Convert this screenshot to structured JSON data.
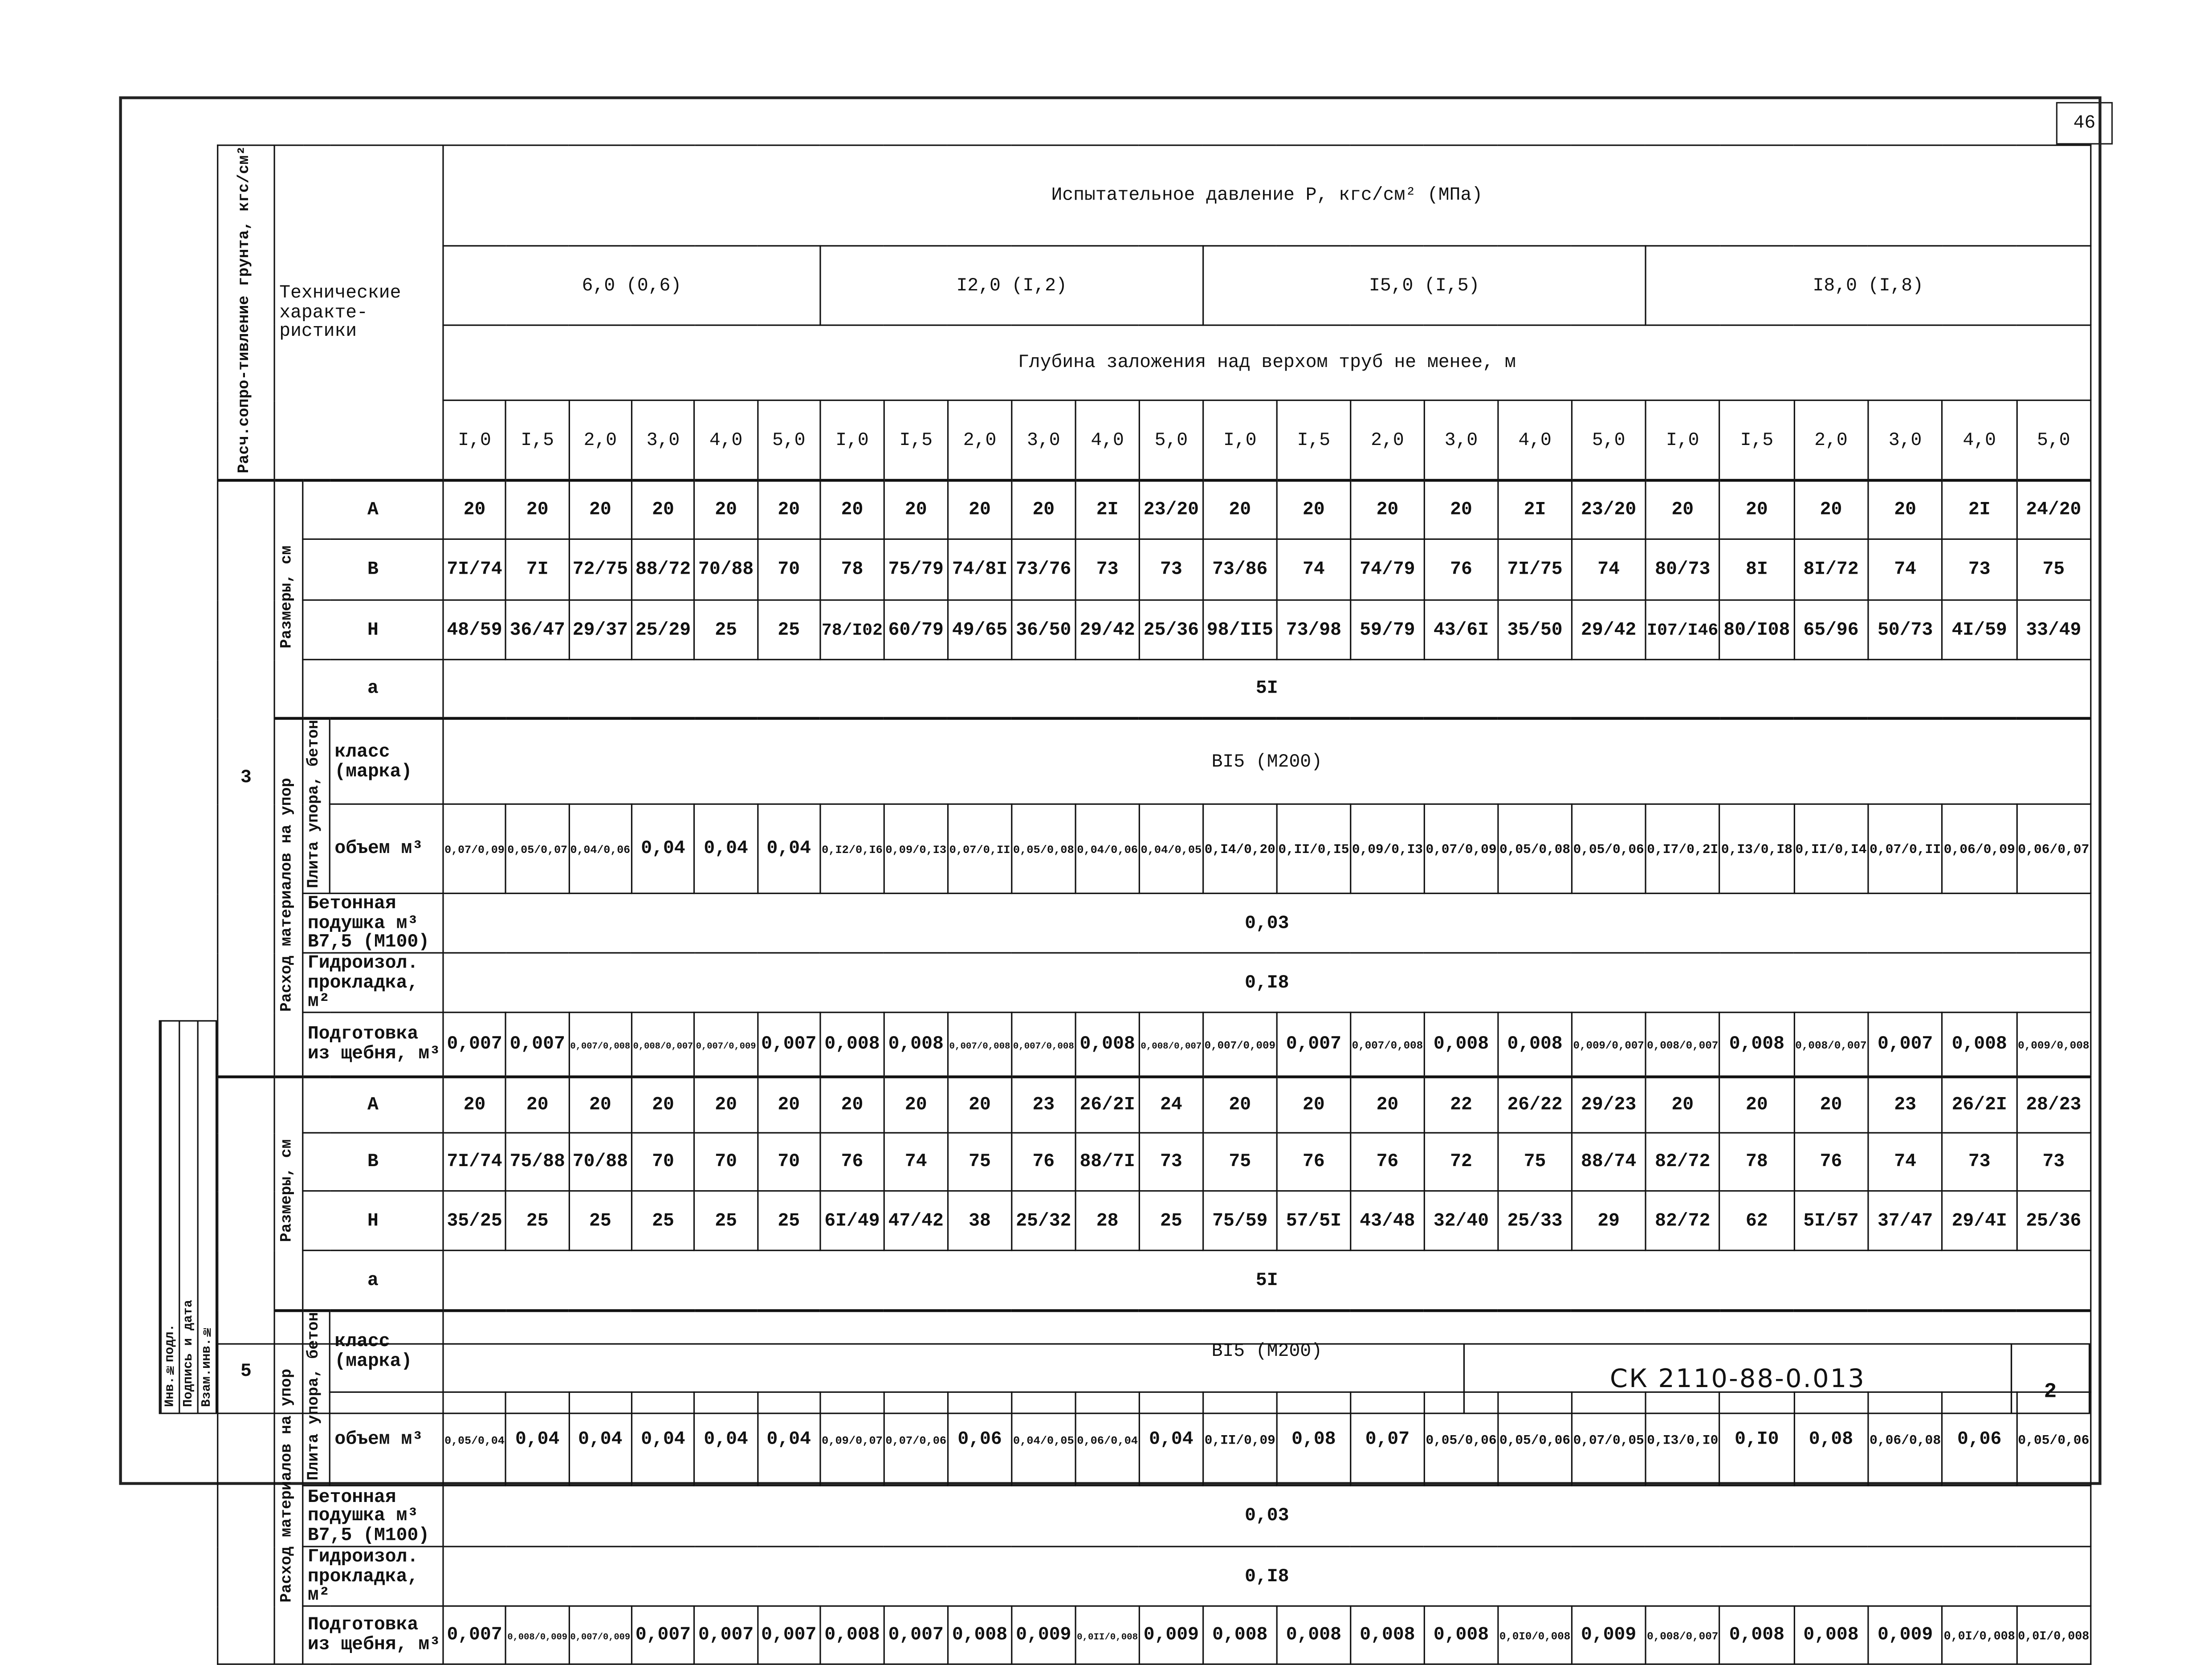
{
  "sheet_number": "46",
  "header": {
    "soil_resistance": "Расч.сопро-тивление грунта, кгс/см²",
    "tech_characteristics": "Технические характе-ристики",
    "test_pressure": "Испытательное давление Р, кгс/см² (МПа)",
    "pressure_groups": [
      "6,0 (0,6)",
      "I2,0 (I,2)",
      "I5,0 (I,5)",
      "I8,0 (I,8)"
    ],
    "depth_label": "Глубина заложения над верхом труб не менее, м",
    "depths": [
      "I,0",
      "I,5",
      "2,0",
      "3,0",
      "4,0",
      "5,0",
      "I,0",
      "I,5",
      "2,0",
      "3,0",
      "4,0",
      "5,0",
      "I,0",
      "I,5",
      "2,0",
      "3,0",
      "4,0",
      "5,0",
      "I,0",
      "I,5",
      "2,0",
      "3,0",
      "4,0",
      "5,0"
    ]
  },
  "labels": {
    "dimensions_group": "Размеры, см",
    "materials_group": "Расход материалов на упор",
    "slab_group": "Плита упора, бетон",
    "A": "А",
    "B": "В",
    "H": "Н",
    "a": "а",
    "class": "класс (марка)",
    "volume": "объем м³",
    "cushion": "Бетонная подушка м³ В7,5 (М100)",
    "waterproofing": "Гидроизол. прокладка, м²",
    "gravel": "Подготовка из щебня, м³"
  },
  "sections": [
    {
      "soil_resistance": "3",
      "A": [
        "20",
        "20",
        "20",
        "20",
        "20",
        "20",
        "20",
        "20",
        "20",
        "20",
        "2I",
        "23/20",
        "20",
        "20",
        "20",
        "20",
        "2I",
        "23/20",
        "20",
        "20",
        "20",
        "20",
        "2I",
        "24/20"
      ],
      "B": [
        "7I/74",
        "7I",
        "72/75",
        "88/72",
        "70/88",
        "70",
        "78",
        "75/79",
        "74/8I",
        "73/76",
        "73",
        "73",
        "73/86",
        "74",
        "74/79",
        "76",
        "7I/75",
        "74",
        "80/73",
        "8I",
        "8I/72",
        "74",
        "73",
        "75"
      ],
      "H": [
        "48/59",
        "36/47",
        "29/37",
        "25/29",
        "25",
        "25",
        "78/I02",
        "60/79",
        "49/65",
        "36/50",
        "29/42",
        "25/36",
        "98/II5",
        "73/98",
        "59/79",
        "43/6I",
        "35/50",
        "29/42",
        "I07/I46",
        "80/I08",
        "65/96",
        "50/73",
        "4I/59",
        "33/49"
      ],
      "a": "5I",
      "class": "ВI5 (М200)",
      "volume": [
        "0,07/0,09",
        "0,05/0,07",
        "0,04/0,06",
        "0,04",
        "0,04",
        "0,04",
        "0,I2/0,I6",
        "0,09/0,I3",
        "0,07/0,II",
        "0,05/0,08",
        "0,04/0,06",
        "0,04/0,05",
        "0,I4/0,20",
        "0,II/0,I5",
        "0,09/0,I3",
        "0,07/0,09",
        "0,05/0,08",
        "0,05/0,06",
        "0,I7/0,2I",
        "0,I3/0,I8",
        "0,II/0,I4",
        "0,07/0,II",
        "0,06/0,09",
        "0,06/0,07"
      ],
      "cushion": "0,03",
      "waterproofing": "0,I8",
      "gravel": [
        "0,007",
        "0,007",
        "0,007/0,008",
        "0,008/0,007",
        "0,007/0,009",
        "0,007",
        "0,008",
        "0,008",
        "0,007/0,008",
        "0,007/0,008",
        "0,008",
        "0,008/0,007",
        "0,007/0,009",
        "0,007",
        "0,007/0,008",
        "0,008",
        "0,008",
        "0,009/0,007",
        "0,008/0,007",
        "0,008",
        "0,008/0,007",
        "0,007",
        "0,008",
        "0,009/0,008"
      ]
    },
    {
      "soil_resistance": "5",
      "A": [
        "20",
        "20",
        "20",
        "20",
        "20",
        "20",
        "20",
        "20",
        "20",
        "23",
        "26/2I",
        "24",
        "20",
        "20",
        "20",
        "22",
        "26/22",
        "29/23",
        "20",
        "20",
        "20",
        "23",
        "26/2I",
        "28/23"
      ],
      "B": [
        "7I/74",
        "75/88",
        "70/88",
        "70",
        "70",
        "70",
        "76",
        "74",
        "75",
        "76",
        "88/7I",
        "73",
        "75",
        "76",
        "76",
        "72",
        "75",
        "88/74",
        "82/72",
        "78",
        "76",
        "74",
        "73",
        "73"
      ],
      "H": [
        "35/25",
        "25",
        "25",
        "25",
        "25",
        "25",
        "6I/49",
        "47/42",
        "38",
        "25/32",
        "28",
        "25",
        "75/59",
        "57/5I",
        "43/48",
        "32/40",
        "25/33",
        "29",
        "82/72",
        "62",
        "5I/57",
        "37/47",
        "29/4I",
        "25/36"
      ],
      "a": "5I",
      "class": "ВI5 (М200)",
      "volume": [
        "0,05/0,04",
        "0,04",
        "0,04",
        "0,04",
        "0,04",
        "0,04",
        "0,09/0,07",
        "0,07/0,06",
        "0,06",
        "0,04/0,05",
        "0,06/0,04",
        "0,04",
        "0,II/0,09",
        "0,08",
        "0,07",
        "0,05/0,06",
        "0,05/0,06",
        "0,07/0,05",
        "0,I3/0,I0",
        "0,I0",
        "0,08",
        "0,06/0,08",
        "0,06",
        "0,05/0,06"
      ],
      "cushion": "0,03",
      "waterproofing": "0,I8",
      "gravel": [
        "0,007",
        "0,008/0,009",
        "0,007/0,009",
        "0,007",
        "0,007",
        "0,007",
        "0,008",
        "0,007",
        "0,008",
        "0,009",
        "0,0II/0,008",
        "0,009",
        "0,008",
        "0,008",
        "0,008",
        "0,008",
        "0,0I0/0,008",
        "0,009",
        "0,008/0,007",
        "0,008",
        "0,008",
        "0,009",
        "0,0I/0,008",
        "0,0I/0,008"
      ]
    }
  ],
  "title_block": {
    "document_code": "СК 2110-88-0.013",
    "page": "2"
  },
  "side_stamp": [
    "Инв.№подл.",
    "Подпись и дата",
    "Взам.инв.№"
  ]
}
